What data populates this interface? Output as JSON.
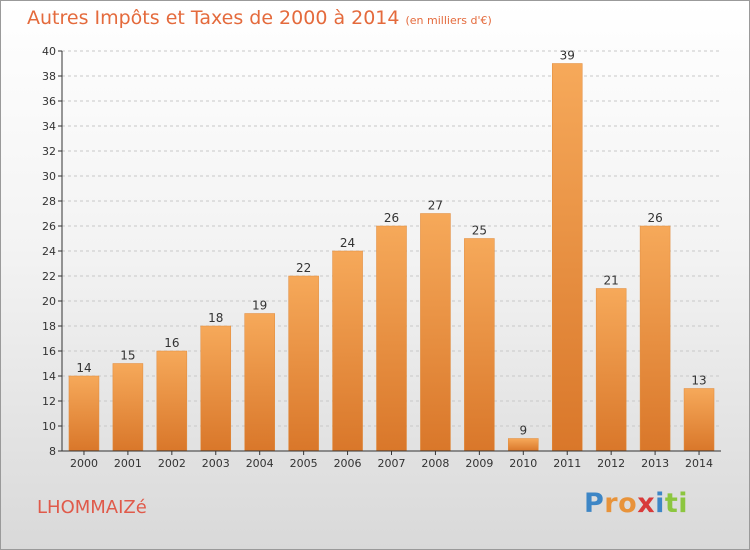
{
  "title": "Autres Impôts et Taxes de 2000 à 2014",
  "unit_note": "(en milliers d'€)",
  "city": "LHOMMAIZé",
  "logo": [
    "P",
    "r",
    "o",
    "x",
    "i",
    "t",
    "i"
  ],
  "colors": {
    "bar_top": "#f6a95a",
    "bar_bottom": "#d9772a",
    "title": "#e46a3c",
    "axis": "#333333",
    "grid": "#c8c8c8"
  },
  "chart_data": {
    "type": "bar",
    "categories": [
      "2000",
      "2001",
      "2002",
      "2003",
      "2004",
      "2005",
      "2006",
      "2007",
      "2008",
      "2009",
      "2010",
      "2011",
      "2012",
      "2013",
      "2014"
    ],
    "values": [
      14,
      15,
      16,
      18,
      19,
      22,
      24,
      26,
      27,
      25,
      9,
      39,
      21,
      26,
      13
    ],
    "ylim": [
      8,
      40
    ],
    "yticks": [
      8,
      10,
      12,
      14,
      16,
      18,
      20,
      22,
      24,
      26,
      28,
      30,
      32,
      34,
      36,
      38,
      40
    ],
    "grid": "dashed horizontal",
    "legend": "none"
  }
}
